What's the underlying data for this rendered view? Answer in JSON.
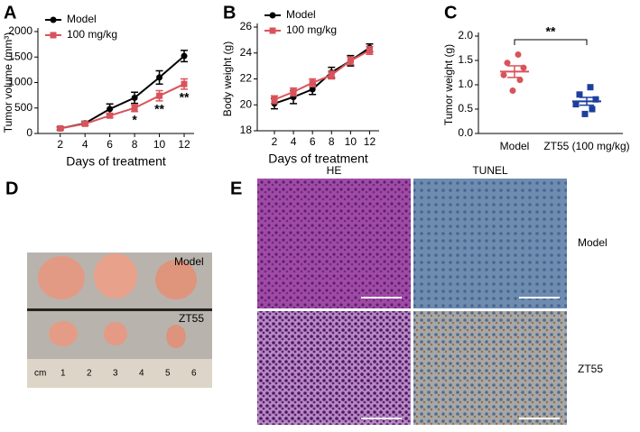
{
  "chart_data": [
    {
      "type": "line",
      "panel": "A",
      "xlabel": "Days of treatment",
      "ylabel": "Tumor volume (mm³)",
      "x": [
        2,
        4,
        6,
        8,
        10,
        12
      ],
      "xlim": [
        0.2,
        12.8
      ],
      "xticks": [
        2,
        4,
        6,
        8,
        10,
        12
      ],
      "ylim": [
        0,
        2000
      ],
      "yticks": [
        0,
        500,
        1000,
        1500,
        2000
      ],
      "legend": "upper left",
      "series": [
        {
          "name": "Model",
          "color": "#000000",
          "marker": "circle",
          "values": [
            100,
            200,
            480,
            700,
            1100,
            1520
          ],
          "errors": [
            30,
            40,
            100,
            110,
            130,
            110
          ]
        },
        {
          "name": "100 mg/kg",
          "color": "#d9535a",
          "marker": "square",
          "values": [
            100,
            190,
            350,
            500,
            740,
            970
          ],
          "errors": [
            20,
            30,
            40,
            70,
            100,
            100
          ]
        }
      ],
      "annotations": [
        {
          "x": 8,
          "text": "*"
        },
        {
          "x": 10,
          "text": "**"
        },
        {
          "x": 12,
          "text": "**"
        }
      ]
    },
    {
      "type": "line",
      "panel": "B",
      "xlabel": "Days of treatment",
      "ylabel": "Body weight (g)",
      "x": [
        2,
        4,
        6,
        8,
        10,
        12
      ],
      "xlim": [
        0.2,
        13
      ],
      "xticks": [
        2,
        4,
        6,
        8,
        10,
        12
      ],
      "ylim": [
        18,
        26
      ],
      "yticks": [
        18,
        20,
        22,
        24,
        26
      ],
      "legend": "upper left",
      "series": [
        {
          "name": "Model",
          "color": "#000000",
          "marker": "circle",
          "values": [
            20.1,
            20.6,
            21.2,
            22.5,
            23.4,
            24.4
          ],
          "errors": [
            0.4,
            0.5,
            0.4,
            0.4,
            0.4,
            0.3
          ]
        },
        {
          "name": "100 mg/kg",
          "color": "#d9535a",
          "marker": "square",
          "values": [
            20.4,
            21.0,
            21.7,
            22.3,
            23.4,
            24.2
          ],
          "errors": [
            0.3,
            0.3,
            0.3,
            0.3,
            0.3,
            0.3
          ]
        }
      ]
    },
    {
      "type": "scatter",
      "panel": "C",
      "ylabel": "Tumor weight (g)",
      "categories": [
        "Model",
        "ZT55 (100 mg/kg)"
      ],
      "ylim": [
        0,
        2.0
      ],
      "yticks": [
        {
          "value": 0,
          "label": "0.0"
        },
        {
          "value": 0.5,
          "label": "0.5"
        },
        {
          "value": 1,
          "label": "1.0"
        },
        {
          "value": 1.5,
          "label": "1.5"
        },
        {
          "value": 2,
          "label": "2.0"
        }
      ],
      "groups": [
        {
          "color": "#d9535a",
          "marker": "circle",
          "values": [
            1.62,
            1.45,
            1.35,
            1.2,
            1.1,
            0.88
          ],
          "mean": 1.27,
          "sem": 0.12
        },
        {
          "color": "#1c3f9e",
          "marker": "square",
          "values": [
            0.95,
            0.8,
            0.7,
            0.6,
            0.5,
            0.4
          ],
          "mean": 0.66,
          "sem": 0.08
        }
      ],
      "annotations": [
        {
          "text": "**"
        }
      ]
    }
  ],
  "panel_d": {
    "panel": "D",
    "labels": [
      "Model",
      "ZT55"
    ],
    "ruler": [
      "cm",
      "1",
      "2",
      "3",
      "4",
      "5",
      "6"
    ]
  },
  "panel_e": {
    "panel": "E",
    "columns": [
      "HE",
      "TUNEL"
    ],
    "rows": [
      "Model",
      "ZT55"
    ]
  }
}
